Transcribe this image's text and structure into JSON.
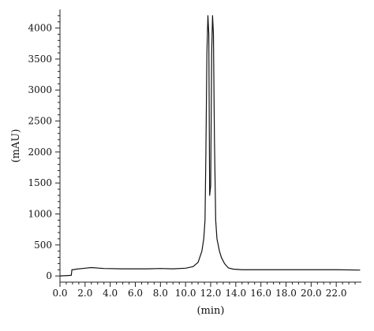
{
  "chart_data": {
    "type": "line",
    "title": "",
    "xlabel": "(min)",
    "ylabel": "(mAU)",
    "xlim": [
      0,
      24
    ],
    "ylim": [
      -100,
      4300
    ],
    "grid": false,
    "line_color": "#111111",
    "x_ticks_major": [
      "0.0",
      "2.0",
      "4.0",
      "6.0",
      "8.0",
      "10.0",
      "12.0",
      "14.0",
      "16.0",
      "18.0",
      "20.0",
      "22.0"
    ],
    "y_ticks_major": [
      "0",
      "500",
      "1000",
      "1500",
      "2000",
      "2500",
      "3000",
      "3500",
      "4000"
    ],
    "series": [
      {
        "x": [
          0,
          0.5,
          0.9,
          0.95,
          1.05,
          1.3,
          2.0,
          2.5,
          3.5,
          5.0,
          6.0,
          7.0,
          8.0,
          9.0,
          10.0,
          10.6,
          11.0,
          11.3,
          11.45,
          11.55,
          11.62,
          11.7,
          11.78,
          11.85,
          11.92,
          12.0,
          12.08,
          12.15,
          12.22,
          12.3,
          12.4,
          12.5,
          12.6,
          12.7,
          12.85,
          13.1,
          13.4,
          13.8,
          14.5,
          16.0,
          18.0,
          20.0,
          22.0,
          23.9
        ],
        "y": [
          0,
          5,
          10,
          100,
          100,
          110,
          125,
          135,
          120,
          115,
          115,
          115,
          120,
          115,
          125,
          150,
          220,
          400,
          600,
          900,
          2000,
          3600,
          4200,
          3900,
          1300,
          1450,
          3600,
          4200,
          3900,
          2200,
          900,
          600,
          500,
          400,
          300,
          200,
          130,
          110,
          100,
          100,
          100,
          100,
          100,
          95
        ]
      }
    ]
  }
}
